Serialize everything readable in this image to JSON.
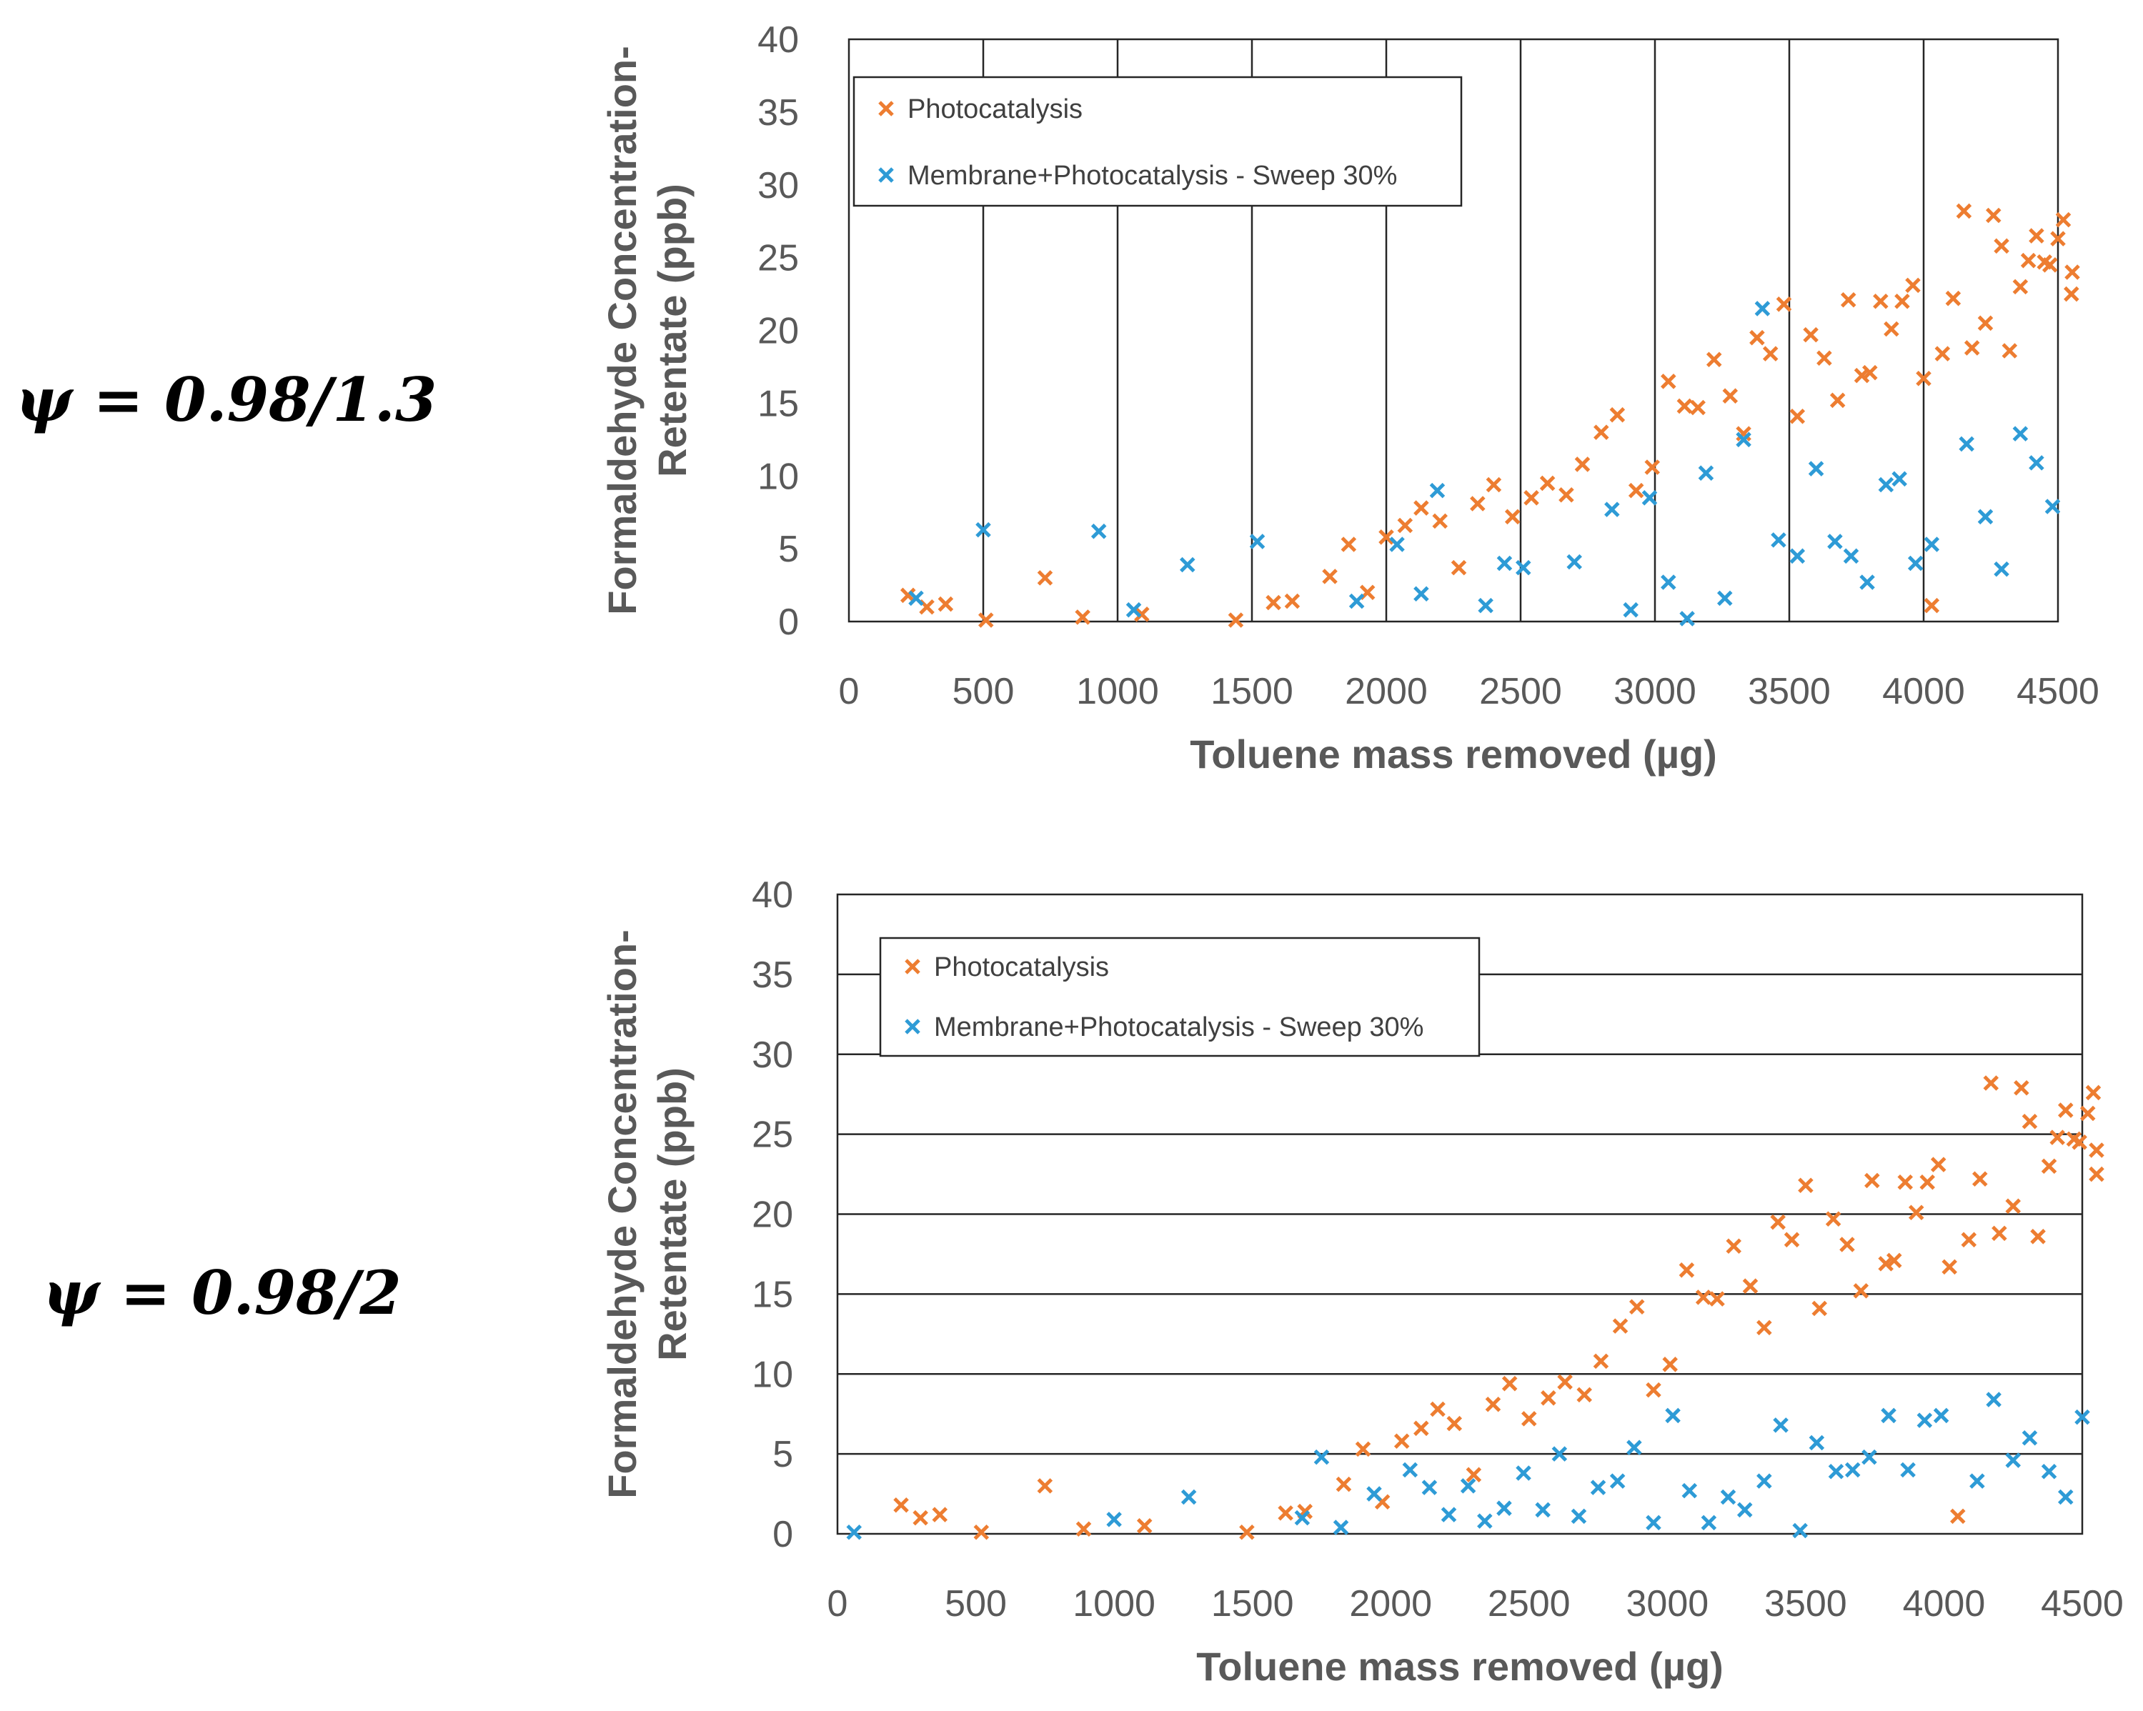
{
  "psi_labels": [
    "ψ = 0.98/1.3",
    "ψ = 0.98/2"
  ],
  "colors": {
    "photocatalysis": "#ED7D31",
    "membrane": "#2E9BD6",
    "grid": "#262626",
    "frame": "#595959"
  },
  "chart_data": [
    {
      "type": "scatter",
      "title": "",
      "xlabel": "Toluene mass removed (µg)",
      "ylabel_lines": [
        "Formaldehyde Concentration-",
        "Retentate (ppb)"
      ],
      "xlim": [
        0,
        4500
      ],
      "ylim": [
        0,
        40
      ],
      "x_ticks": [
        0,
        500,
        1000,
        1500,
        2000,
        2500,
        3000,
        3500,
        4000,
        4500
      ],
      "y_ticks": [
        0,
        5,
        10,
        15,
        20,
        25,
        30,
        35,
        40
      ],
      "grid": "vertical",
      "legend_position": "top-left",
      "series": [
        {
          "name": "Photocatalysis",
          "marker": "x",
          "points": [
            [
              220,
              1.8
            ],
            [
              290,
              1.0
            ],
            [
              360,
              1.2
            ],
            [
              510,
              0.1
            ],
            [
              730,
              3.0
            ],
            [
              870,
              0.3
            ],
            [
              1090,
              0.5
            ],
            [
              1440,
              0.1
            ],
            [
              1580,
              1.3
            ],
            [
              1650,
              1.4
            ],
            [
              1790,
              3.1
            ],
            [
              1860,
              5.3
            ],
            [
              1930,
              2.0
            ],
            [
              2000,
              5.8
            ],
            [
              2070,
              6.6
            ],
            [
              2130,
              7.8
            ],
            [
              2200,
              6.9
            ],
            [
              2270,
              3.7
            ],
            [
              2340,
              8.1
            ],
            [
              2400,
              9.4
            ],
            [
              2470,
              7.2
            ],
            [
              2540,
              8.5
            ],
            [
              2600,
              9.5
            ],
            [
              2670,
              8.7
            ],
            [
              2730,
              10.8
            ],
            [
              2800,
              13.0
            ],
            [
              2860,
              14.2
            ],
            [
              2930,
              9.0
            ],
            [
              2990,
              10.6
            ],
            [
              3050,
              16.5
            ],
            [
              3110,
              14.8
            ],
            [
              3160,
              14.7
            ],
            [
              3220,
              18.0
            ],
            [
              3280,
              15.5
            ],
            [
              3330,
              12.9
            ],
            [
              3380,
              19.5
            ],
            [
              3430,
              18.4
            ],
            [
              3480,
              21.8
            ],
            [
              3530,
              14.1
            ],
            [
              3580,
              19.7
            ],
            [
              3630,
              18.1
            ],
            [
              3680,
              15.2
            ],
            [
              3720,
              22.1
            ],
            [
              3770,
              16.9
            ],
            [
              3800,
              17.1
            ],
            [
              3840,
              22.0
            ],
            [
              3880,
              20.1
            ],
            [
              3920,
              22.0
            ],
            [
              3960,
              23.1
            ],
            [
              4000,
              16.7
            ],
            [
              4030,
              1.1
            ],
            [
              4070,
              18.4
            ],
            [
              4110,
              22.2
            ],
            [
              4150,
              28.2
            ],
            [
              4180,
              18.8
            ],
            [
              4230,
              20.5
            ],
            [
              4260,
              27.9
            ],
            [
              4290,
              25.8
            ],
            [
              4320,
              18.6
            ],
            [
              4360,
              23.0
            ],
            [
              4390,
              24.8
            ],
            [
              4420,
              26.5
            ],
            [
              4450,
              24.7
            ],
            [
              4470,
              24.5
            ],
            [
              4500,
              26.3
            ],
            [
              4520,
              27.6
            ],
            [
              4550,
              22.5
            ],
            [
              4580,
              24.0
            ]
          ]
        },
        {
          "name": "Membrane+Photocatalysis - Sweep 30%",
          "marker": "x",
          "points": [
            [
              250,
              1.6
            ],
            [
              500,
              6.3
            ],
            [
              930,
              6.2
            ],
            [
              1060,
              0.8
            ],
            [
              1260,
              3.9
            ],
            [
              1520,
              5.5
            ],
            [
              1890,
              1.4
            ],
            [
              2040,
              5.3
            ],
            [
              2130,
              1.9
            ],
            [
              2190,
              9.0
            ],
            [
              2370,
              1.1
            ],
            [
              2440,
              4.0
            ],
            [
              2510,
              3.7
            ],
            [
              2700,
              4.1
            ],
            [
              2840,
              7.7
            ],
            [
              2910,
              0.8
            ],
            [
              2980,
              8.5
            ],
            [
              3050,
              2.7
            ],
            [
              3120,
              0.2
            ],
            [
              3190,
              10.2
            ],
            [
              3260,
              1.6
            ],
            [
              3330,
              12.5
            ],
            [
              3400,
              21.5
            ],
            [
              3460,
              5.6
            ],
            [
              3530,
              4.5
            ],
            [
              3600,
              10.5
            ],
            [
              3670,
              5.5
            ],
            [
              3730,
              4.5
            ],
            [
              3790,
              2.7
            ],
            [
              3860,
              9.4
            ],
            [
              3910,
              9.8
            ],
            [
              3970,
              4.0
            ],
            [
              4030,
              5.3
            ],
            [
              4160,
              12.2
            ],
            [
              4230,
              7.2
            ],
            [
              4290,
              3.6
            ],
            [
              4360,
              12.9
            ],
            [
              4420,
              10.9
            ],
            [
              4480,
              7.9
            ]
          ]
        }
      ]
    },
    {
      "type": "scatter",
      "title": "",
      "xlabel": "Toluene mass removed (µg)",
      "ylabel_lines": [
        "Formaldehyde Concentration-",
        "Retentate (ppb)"
      ],
      "xlim": [
        0,
        4500
      ],
      "ylim": [
        0,
        40
      ],
      "x_ticks": [
        0,
        500,
        1000,
        1500,
        2000,
        2500,
        3000,
        3500,
        4000,
        4500
      ],
      "y_ticks": [
        0,
        5,
        10,
        15,
        20,
        25,
        30,
        35,
        40
      ],
      "grid": "horizontal",
      "legend_position": "top-left",
      "series": [
        {
          "name": "Photocatalysis",
          "marker": "x",
          "points": [
            [
              230,
              1.8
            ],
            [
              300,
              1.0
            ],
            [
              370,
              1.2
            ],
            [
              520,
              0.1
            ],
            [
              750,
              3.0
            ],
            [
              890,
              0.3
            ],
            [
              1110,
              0.5
            ],
            [
              1480,
              0.1
            ],
            [
              1620,
              1.3
            ],
            [
              1690,
              1.4
            ],
            [
              1830,
              3.1
            ],
            [
              1900,
              5.3
            ],
            [
              1970,
              2.0
            ],
            [
              2040,
              5.8
            ],
            [
              2110,
              6.6
            ],
            [
              2170,
              7.8
            ],
            [
              2230,
              6.9
            ],
            [
              2300,
              3.7
            ],
            [
              2370,
              8.1
            ],
            [
              2430,
              9.4
            ],
            [
              2500,
              7.2
            ],
            [
              2570,
              8.5
            ],
            [
              2630,
              9.5
            ],
            [
              2700,
              8.7
            ],
            [
              2760,
              10.8
            ],
            [
              2830,
              13.0
            ],
            [
              2890,
              14.2
            ],
            [
              2950,
              9.0
            ],
            [
              3010,
              10.6
            ],
            [
              3070,
              16.5
            ],
            [
              3130,
              14.8
            ],
            [
              3180,
              14.7
            ],
            [
              3240,
              18.0
            ],
            [
              3300,
              15.5
            ],
            [
              3350,
              12.9
            ],
            [
              3400,
              19.5
            ],
            [
              3450,
              18.4
            ],
            [
              3500,
              21.8
            ],
            [
              3550,
              14.1
            ],
            [
              3600,
              19.7
            ],
            [
              3650,
              18.1
            ],
            [
              3700,
              15.2
            ],
            [
              3740,
              22.1
            ],
            [
              3790,
              16.9
            ],
            [
              3820,
              17.1
            ],
            [
              3860,
              22.0
            ],
            [
              3900,
              20.1
            ],
            [
              3940,
              22.0
            ],
            [
              3980,
              23.1
            ],
            [
              4020,
              16.7
            ],
            [
              4050,
              1.1
            ],
            [
              4090,
              18.4
            ],
            [
              4130,
              22.2
            ],
            [
              4170,
              28.2
            ],
            [
              4200,
              18.8
            ],
            [
              4250,
              20.5
            ],
            [
              4280,
              27.9
            ],
            [
              4310,
              25.8
            ],
            [
              4340,
              18.6
            ],
            [
              4380,
              23.0
            ],
            [
              4410,
              24.8
            ],
            [
              4440,
              26.5
            ],
            [
              4470,
              24.7
            ],
            [
              4490,
              24.5
            ],
            [
              4520,
              26.3
            ],
            [
              4540,
              27.6
            ],
            [
              4570,
              22.5
            ],
            [
              4600,
              24.0
            ]
          ]
        },
        {
          "name": "Membrane+Photocatalysis - Sweep 30%",
          "marker": "x",
          "points": [
            [
              60,
              0.1
            ],
            [
              1000,
              0.9
            ],
            [
              1270,
              2.3
            ],
            [
              1680,
              1.0
            ],
            [
              1750,
              4.8
            ],
            [
              1820,
              0.4
            ],
            [
              1940,
              2.5
            ],
            [
              2070,
              4.0
            ],
            [
              2140,
              2.9
            ],
            [
              2210,
              1.2
            ],
            [
              2280,
              3.0
            ],
            [
              2340,
              0.8
            ],
            [
              2410,
              1.6
            ],
            [
              2480,
              3.8
            ],
            [
              2550,
              1.5
            ],
            [
              2610,
              5.0
            ],
            [
              2680,
              1.1
            ],
            [
              2750,
              2.9
            ],
            [
              2820,
              3.3
            ],
            [
              2880,
              5.4
            ],
            [
              2950,
              0.7
            ],
            [
              3020,
              7.4
            ],
            [
              3080,
              2.7
            ],
            [
              3150,
              0.7
            ],
            [
              3220,
              2.3
            ],
            [
              3280,
              1.5
            ],
            [
              3350,
              3.3
            ],
            [
              3410,
              6.8
            ],
            [
              3480,
              0.2
            ],
            [
              3540,
              5.7
            ],
            [
              3610,
              3.9
            ],
            [
              3670,
              4.0
            ],
            [
              3730,
              4.8
            ],
            [
              3800,
              7.4
            ],
            [
              3870,
              4.0
            ],
            [
              3930,
              7.1
            ],
            [
              3990,
              7.4
            ],
            [
              4120,
              3.3
            ],
            [
              4180,
              8.4
            ],
            [
              4250,
              4.6
            ],
            [
              4310,
              6.0
            ],
            [
              4380,
              3.9
            ],
            [
              4440,
              2.3
            ],
            [
              4500,
              7.3
            ]
          ]
        }
      ]
    }
  ]
}
